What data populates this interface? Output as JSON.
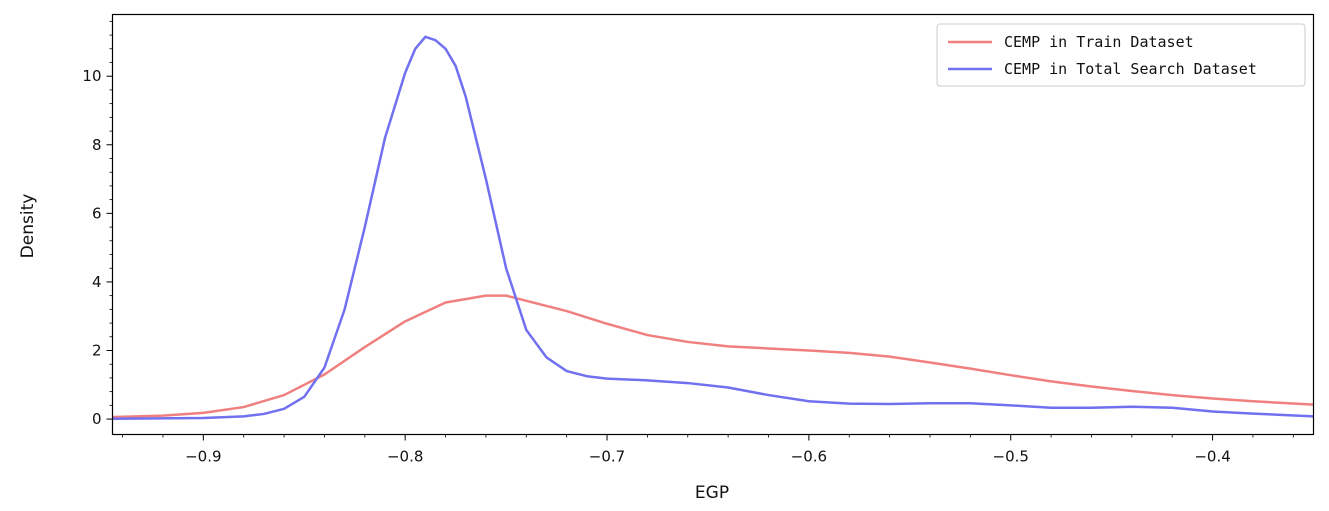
{
  "chart_data": {
    "type": "line",
    "title": "",
    "xlabel": "EGP",
    "ylabel": "Density",
    "xlim": [
      -0.945,
      -0.35
    ],
    "ylim": [
      -0.45,
      11.8
    ],
    "xticks": [
      -0.9,
      -0.8,
      -0.7,
      -0.6,
      -0.5,
      -0.4
    ],
    "xtick_labels": [
      "−0.9",
      "−0.8",
      "−0.7",
      "−0.6",
      "−0.5",
      "−0.4"
    ],
    "yticks": [
      0,
      2,
      4,
      6,
      8,
      10
    ],
    "ytick_labels": [
      "0",
      "2",
      "4",
      "6",
      "8",
      "10"
    ],
    "grid": false,
    "legend_position": "top-right",
    "series": [
      {
        "name": "CEMP in Train Dataset",
        "color": "#f08080",
        "x": [
          -0.945,
          -0.92,
          -0.9,
          -0.88,
          -0.86,
          -0.84,
          -0.82,
          -0.8,
          -0.78,
          -0.76,
          -0.75,
          -0.74,
          -0.72,
          -0.7,
          -0.68,
          -0.66,
          -0.64,
          -0.62,
          -0.6,
          -0.58,
          -0.56,
          -0.54,
          -0.52,
          -0.5,
          -0.48,
          -0.46,
          -0.44,
          -0.42,
          -0.4,
          -0.38,
          -0.35
        ],
        "y": [
          0.06,
          0.1,
          0.18,
          0.35,
          0.7,
          1.3,
          2.1,
          2.85,
          3.4,
          3.6,
          3.6,
          3.45,
          3.15,
          2.78,
          2.45,
          2.25,
          2.12,
          2.06,
          2.0,
          1.93,
          1.82,
          1.65,
          1.47,
          1.28,
          1.1,
          0.95,
          0.82,
          0.7,
          0.6,
          0.52,
          0.42
        ]
      },
      {
        "name": "CEMP in Total Search Dataset",
        "color": "#7070f0",
        "x": [
          -0.945,
          -0.9,
          -0.88,
          -0.87,
          -0.86,
          -0.85,
          -0.84,
          -0.83,
          -0.82,
          -0.81,
          -0.8,
          -0.795,
          -0.79,
          -0.785,
          -0.78,
          -0.775,
          -0.77,
          -0.76,
          -0.75,
          -0.74,
          -0.73,
          -0.72,
          -0.71,
          -0.7,
          -0.68,
          -0.66,
          -0.64,
          -0.62,
          -0.6,
          -0.58,
          -0.56,
          -0.54,
          -0.52,
          -0.5,
          -0.48,
          -0.46,
          -0.44,
          -0.42,
          -0.4,
          -0.38,
          -0.35
        ],
        "y": [
          0.01,
          0.03,
          0.08,
          0.15,
          0.3,
          0.65,
          1.5,
          3.2,
          5.6,
          8.2,
          10.1,
          10.8,
          11.15,
          11.05,
          10.8,
          10.3,
          9.4,
          7.0,
          4.4,
          2.6,
          1.8,
          1.4,
          1.25,
          1.18,
          1.13,
          1.05,
          0.92,
          0.7,
          0.52,
          0.45,
          0.44,
          0.46,
          0.46,
          0.4,
          0.33,
          0.33,
          0.36,
          0.33,
          0.22,
          0.16,
          0.08
        ]
      }
    ]
  }
}
